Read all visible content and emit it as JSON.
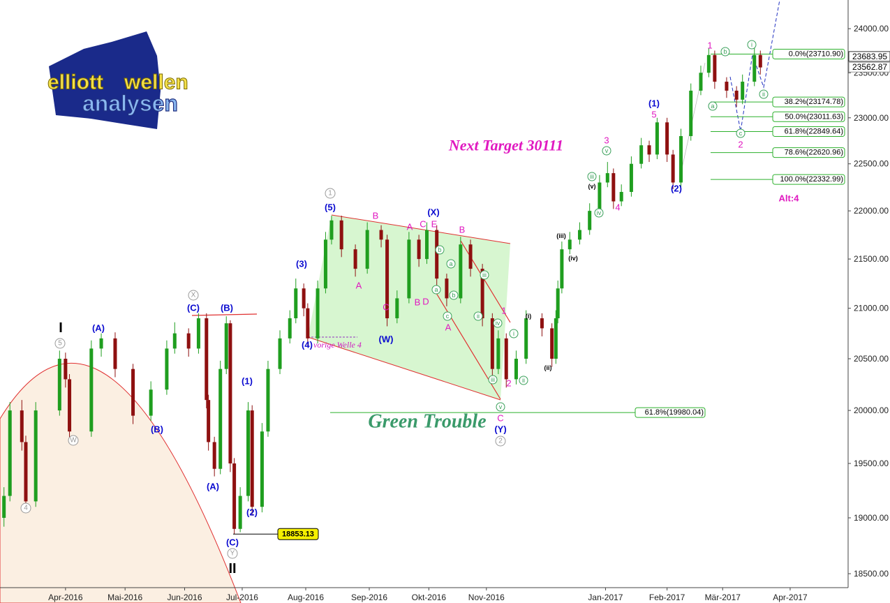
{
  "chart_data": {
    "type": "candlestick",
    "log_scale": true,
    "up_color": "#1f9e1f",
    "down_color": "#8e1010",
    "xlim": [
      0,
      427.2
    ],
    "xticks": [
      {
        "value": 33,
        "label": "Apr-2016"
      },
      {
        "value": 63,
        "label": "Mai-2016"
      },
      {
        "value": 93,
        "label": "Jun-2016"
      },
      {
        "value": 122,
        "label": "Jul-2016"
      },
      {
        "value": 154,
        "label": "Aug-2016"
      },
      {
        "value": 186,
        "label": "Sep-2016"
      },
      {
        "value": 216,
        "label": "Okt-2016"
      },
      {
        "value": 245,
        "label": "Nov-2016"
      },
      {
        "value": 305,
        "label": "Jan-2017"
      },
      {
        "value": 336,
        "label": "Feb-2017"
      },
      {
        "value": 364,
        "label": "Mär-2017"
      },
      {
        "value": 398,
        "label": "Apr-2017"
      }
    ],
    "ylim": [
      18377,
      24331
    ],
    "yticks": [
      {
        "value": 18500,
        "label": "18500.00"
      },
      {
        "value": 19000,
        "label": "19000.00"
      },
      {
        "value": 19500,
        "label": "19500.00"
      },
      {
        "value": 20000,
        "label": "20000.00"
      },
      {
        "value": 20500,
        "label": "20500.00"
      },
      {
        "value": 21000,
        "label": "21000.00"
      },
      {
        "value": 21500,
        "label": "21500.00"
      },
      {
        "value": 22000,
        "label": "22000.00"
      },
      {
        "value": 22500,
        "label": "22500.00"
      },
      {
        "value": 23000,
        "label": "23000.00"
      },
      {
        "value": 23500,
        "label": "23500.00"
      },
      {
        "value": 24000,
        "label": "24000.00"
      }
    ],
    "x": [
      2,
      5,
      11,
      13,
      18,
      30,
      33,
      35,
      46,
      51,
      58,
      67,
      76,
      84,
      88,
      95,
      100,
      104,
      105,
      108,
      111,
      114,
      116,
      118,
      121,
      125,
      127,
      132,
      135,
      141,
      146,
      149,
      153,
      155,
      160,
      164,
      167,
      172,
      179,
      185,
      192,
      195,
      200,
      206,
      211,
      215,
      220,
      225,
      232,
      237,
      243,
      248,
      251,
      255,
      260,
      265,
      273,
      278,
      280,
      281,
      283,
      287,
      292,
      297,
      302,
      306,
      309,
      313,
      318,
      323,
      327,
      331,
      336,
      339,
      343,
      348,
      353,
      357,
      360,
      366,
      371,
      374,
      380,
      383
    ],
    "open": [
      19000,
      19200,
      20000,
      19700,
      19150,
      20000,
      20500,
      20300,
      19800,
      20600,
      20700,
      20400,
      19950,
      20200,
      20600,
      20750,
      20600,
      20900,
      20100,
      19700,
      19450,
      20400,
      20850,
      19500,
      18900,
      19200,
      20000,
      19100,
      19800,
      20400,
      20700,
      20900,
      21200,
      21000,
      20700,
      21200,
      21700,
      21900,
      21600,
      21400,
      21800,
      21700,
      20900,
      21100,
      21700,
      21500,
      21800,
      21300,
      21100,
      21650,
      21400,
      20900,
      20400,
      20700,
      20300,
      20500,
      20900,
      20800,
      20500,
      20900,
      21200,
      21600,
      21700,
      21800,
      22000,
      22300,
      22400,
      22100,
      22200,
      22500,
      22700,
      22600,
      22950,
      22600,
      22300,
      22800,
      23300,
      23500,
      23700,
      23400,
      23300,
      23200,
      23400,
      23700
    ],
    "high": [
      19280,
      20080,
      20100,
      19760,
      20080,
      20580,
      20560,
      20350,
      20680,
      20750,
      20760,
      20450,
      20280,
      20680,
      20860,
      20800,
      20950,
      20950,
      20150,
      19750,
      20480,
      20920,
      20880,
      19550,
      19280,
      20080,
      20050,
      19880,
      20480,
      20780,
      20980,
      21300,
      21250,
      21050,
      21280,
      21780,
      21950,
      21950,
      21650,
      21880,
      21850,
      21750,
      21180,
      21780,
      21750,
      21880,
      21850,
      21350,
      21730,
      21700,
      21450,
      20950,
      20780,
      20750,
      20580,
      20980,
      20950,
      20850,
      20980,
      21280,
      21680,
      21780,
      21880,
      22080,
      22380,
      22520,
      22450,
      22280,
      22580,
      22780,
      22750,
      23000,
      23000,
      22650,
      22880,
      23380,
      23580,
      23780,
      23750,
      23450,
      23350,
      23480,
      23780,
      23750
    ],
    "low": [
      18920,
      19150,
      19620,
      19050,
      19100,
      19950,
      20220,
      19720,
      19750,
      20520,
      20320,
      19870,
      19900,
      20150,
      20550,
      20520,
      20550,
      20020,
      19620,
      19380,
      19400,
      20350,
      19420,
      18853.13,
      18870,
      19150,
      19020,
      19050,
      19750,
      20350,
      20650,
      20850,
      20920,
      20620,
      20650,
      21150,
      21650,
      21520,
      21320,
      21350,
      21620,
      20820,
      20850,
      21050,
      21420,
      21450,
      21220,
      21020,
      21050,
      21320,
      20820,
      20320,
      20350,
      20220,
      20250,
      20450,
      20720,
      20420,
      20450,
      20850,
      21150,
      21550,
      21650,
      21750,
      21950,
      22250,
      22020,
      22050,
      22150,
      22450,
      22520,
      22550,
      22520,
      22230,
      22250,
      22750,
      23250,
      23450,
      23320,
      23220,
      23120,
      23150,
      23350,
      23480
    ],
    "close": [
      19200,
      20000,
      19700,
      19150,
      20000,
      20500,
      20300,
      19800,
      20600,
      20700,
      20400,
      19950,
      20200,
      20600,
      20750,
      20600,
      20900,
      20100,
      19700,
      19450,
      20400,
      20850,
      19500,
      18900,
      19200,
      20000,
      19100,
      19800,
      20400,
      20700,
      20900,
      21200,
      21000,
      20700,
      21200,
      21700,
      21900,
      21600,
      21400,
      21800,
      21700,
      20900,
      21100,
      21700,
      21500,
      21800,
      21300,
      21100,
      21650,
      21400,
      20900,
      20400,
      20700,
      20300,
      20500,
      20900,
      20800,
      20500,
      20900,
      21200,
      21600,
      21700,
      21800,
      22000,
      22300,
      22400,
      22100,
      22200,
      22500,
      22700,
      22600,
      22950,
      22600,
      22300,
      22800,
      23300,
      23500,
      23700,
      23400,
      23300,
      23200,
      23400,
      23700,
      23560
    ],
    "price_markers": [
      23683.95,
      23562.87
    ],
    "low_marker": 18853.13,
    "fib_levels": [
      {
        "value": 23710.9,
        "label": "0.0%(23710.90)"
      },
      {
        "value": 23174.78,
        "label": "38.2%(23174.78)"
      },
      {
        "value": 23011.63,
        "label": "50.0%(23011.63)"
      },
      {
        "value": 22849.64,
        "label": "61.8%(22849.64)"
      },
      {
        "value": 22620.96,
        "label": "78.6%(22620.96)"
      },
      {
        "value": 22332.99,
        "label": "100.0%(22332.99)"
      }
    ],
    "support_level": {
      "value": 19980.04,
      "label": "61.8%(19980.04)"
    },
    "annotations": [
      "I",
      "II",
      "5",
      "4",
      "W",
      "X",
      "Y",
      "1",
      "2",
      "(A)",
      "(B)",
      "(C)",
      "(B)",
      "(A)",
      "(C)",
      "(1)",
      "(2)",
      "(3)",
      "(4)",
      "(5)",
      "(W)",
      "(X)",
      "(Y)",
      "(1)",
      "(2)",
      "A",
      "B",
      "C",
      "A",
      "C",
      "E",
      "B",
      "D",
      "B",
      "A",
      "1",
      "2",
      "C",
      "3",
      "4",
      "5",
      "1",
      "2",
      "Alt:4",
      "b",
      "a",
      "a",
      "b",
      "c",
      "iii",
      "ii",
      "iv",
      "i",
      "iii",
      "ii",
      "v",
      "iii",
      "v",
      "iv",
      "a",
      "b",
      "c",
      "i",
      "ii",
      "(i)",
      "(ii)",
      "(iii)",
      "(iv)",
      "(v)",
      "vorige Welle 4",
      "Next Target 30111",
      "Green Trouble"
    ],
    "logo": [
      "elliott",
      "wellen",
      "analysen"
    ]
  }
}
